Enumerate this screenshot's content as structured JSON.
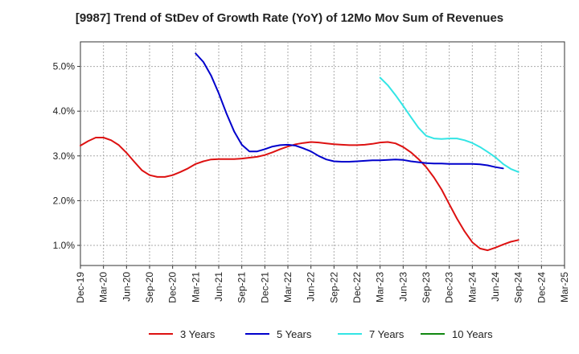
{
  "chart_data": {
    "type": "line",
    "title": "[9987]  Trend of StDev of Growth Rate (YoY) of 12Mo Mov Sum of Revenues",
    "xlabel": "",
    "ylabel": "",
    "ylim": [
      0.55,
      5.55
    ],
    "yticks": [
      1.0,
      2.0,
      3.0,
      4.0,
      5.0
    ],
    "ytick_labels": [
      "1.0%",
      "2.0%",
      "3.0%",
      "4.0%",
      "5.0%"
    ],
    "grid": true,
    "legend_position": "bottom",
    "x_labels": [
      "Dec-19",
      "Mar-20",
      "Jun-20",
      "Sep-20",
      "Dec-20",
      "Mar-21",
      "Jun-21",
      "Sep-21",
      "Dec-21",
      "Mar-22",
      "Jun-22",
      "Sep-22",
      "Dec-22",
      "Mar-23",
      "Jun-23",
      "Sep-23",
      "Dec-23",
      "Mar-24",
      "Jun-24",
      "Sep-24",
      "Dec-24",
      "Mar-25"
    ],
    "series": [
      {
        "name": "3 Years",
        "color": "#dd1111",
        "start_index": 0,
        "values": [
          3.23,
          3.33,
          3.41,
          3.41,
          3.35,
          3.24,
          3.07,
          2.87,
          2.68,
          2.57,
          2.53,
          2.53,
          2.57,
          2.64,
          2.72,
          2.82,
          2.88,
          2.92,
          2.93,
          2.93,
          2.93,
          2.94,
          2.96,
          2.98,
          3.02,
          3.08,
          3.15,
          3.21,
          3.26,
          3.29,
          3.31,
          3.3,
          3.28,
          3.26,
          3.25,
          3.24,
          3.24,
          3.25,
          3.27,
          3.3,
          3.31,
          3.28,
          3.2,
          3.08,
          2.93,
          2.75,
          2.52,
          2.25,
          1.92,
          1.6,
          1.31,
          1.07,
          0.93,
          0.89,
          0.95,
          1.02,
          1.08,
          1.12
        ]
      },
      {
        "name": "5 Years",
        "color": "#0000cc",
        "start_index": 15,
        "values": [
          5.29,
          5.1,
          4.8,
          4.4,
          3.95,
          3.55,
          3.25,
          3.1,
          3.1,
          3.15,
          3.21,
          3.24,
          3.25,
          3.23,
          3.17,
          3.1,
          3.0,
          2.92,
          2.88,
          2.87,
          2.87,
          2.88,
          2.89,
          2.9,
          2.9,
          2.91,
          2.92,
          2.91,
          2.88,
          2.86,
          2.84,
          2.83,
          2.83,
          2.82,
          2.82,
          2.82,
          2.82,
          2.81,
          2.79,
          2.75,
          2.72
        ]
      },
      {
        "name": "7 Years",
        "color": "#33e5e5",
        "start_index": 39,
        "values": [
          4.75,
          4.58,
          4.36,
          4.12,
          3.87,
          3.63,
          3.45,
          3.39,
          3.38,
          3.39,
          3.39,
          3.35,
          3.29,
          3.2,
          3.09,
          2.97,
          2.82,
          2.71,
          2.64
        ]
      },
      {
        "name": "10 Years",
        "color": "#118811",
        "start_index": 0,
        "values": []
      }
    ]
  }
}
